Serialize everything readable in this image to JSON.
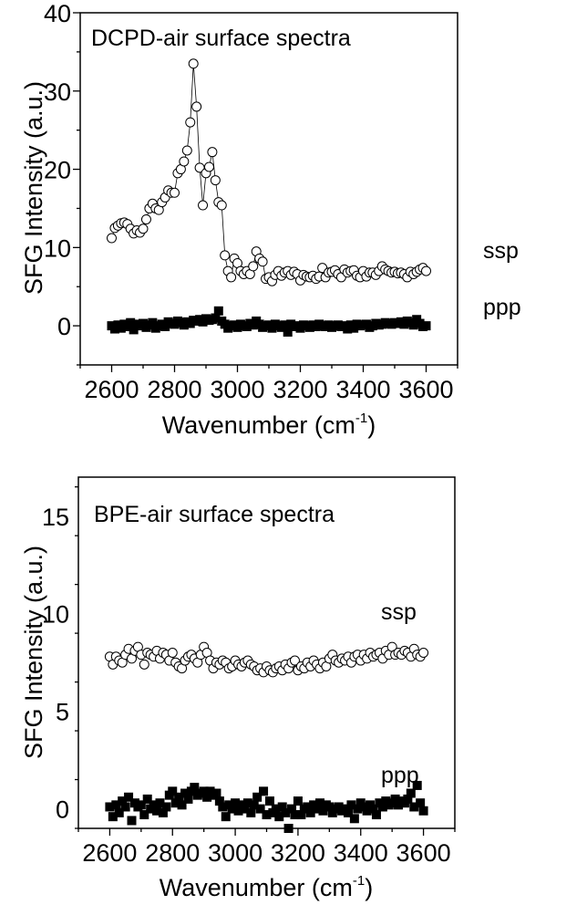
{
  "chart_data": [
    {
      "type": "scatter",
      "title": "DCPD-air surface spectra",
      "xlabel": "Wavenumber (cm",
      "xlabel_sup": "-1",
      "xlabel_end": ")",
      "ylabel": "SFG Intensity (a.u.)",
      "xlim": [
        2500,
        3700
      ],
      "ylim": [
        -5,
        40
      ],
      "xticks": [
        2600,
        2800,
        3000,
        3200,
        3400,
        3600
      ],
      "yticks": [
        0,
        10,
        20,
        30,
        40
      ],
      "grid": false,
      "x_start": 2600,
      "x_step": 10,
      "series": [
        {
          "name": "ssp",
          "marker": "open-circle",
          "line": true,
          "values": [
            11.2,
            12.5,
            12.8,
            13.1,
            13.2,
            13.0,
            12.4,
            11.8,
            12.2,
            11.9,
            12.4,
            13.6,
            15.0,
            15.6,
            15.0,
            14.8,
            15.8,
            16.4,
            17.3,
            17.0,
            17.0,
            19.5,
            20.0,
            21.0,
            22.4,
            26.0,
            33.5,
            28.0,
            20.2,
            15.4,
            19.5,
            20.3,
            22.2,
            18.6,
            15.8,
            15.4,
            9.0,
            7.0,
            6.2,
            8.6,
            8.0,
            7.0,
            6.6,
            7.0,
            6.6,
            7.6,
            9.5,
            8.6,
            8.2,
            6.0,
            6.2,
            5.7,
            6.5,
            7.0,
            6.4,
            6.8,
            7.0,
            6.5,
            6.9,
            6.6,
            5.8,
            6.5,
            6.3,
            6.2,
            6.4,
            6.0,
            6.3,
            7.4,
            6.2,
            6.8,
            6.9,
            7.1,
            6.6,
            6.2,
            7.2,
            6.8,
            7.0,
            7.1,
            6.4,
            6.2,
            7.0,
            6.3,
            6.8,
            6.8,
            6.5,
            7.0,
            7.6,
            7.2,
            7.0,
            6.8,
            6.9,
            6.7,
            6.8,
            6.6,
            6.2,
            6.9,
            6.6,
            6.9,
            7.2,
            7.4,
            7.0
          ]
        },
        {
          "name": "ppp",
          "marker": "filled-square",
          "line": false,
          "values": [
            0.0,
            -0.4,
            0.1,
            -0.3,
            0.2,
            -0.1,
            0.4,
            -0.5,
            0.2,
            0.0,
            0.3,
            -0.2,
            0.1,
            0.4,
            -0.3,
            0.0,
            0.2,
            -0.1,
            0.5,
            0.3,
            0.2,
            0.6,
            0.4,
            0.1,
            0.5,
            0.3,
            0.7,
            0.6,
            0.8,
            0.5,
            0.9,
            0.7,
            0.8,
            1.0,
            1.9,
            0.6,
            0.2,
            -0.3,
            0.0,
            0.1,
            -0.2,
            0.2,
            0.0,
            -0.1,
            0.3,
            0.1,
            0.6,
            0.2,
            -0.2,
            0.0,
            0.1,
            -0.3,
            0.2,
            0.0,
            -0.2,
            0.1,
            -0.8,
            0.2,
            -0.1,
            0.0,
            -0.3,
            0.1,
            0.0,
            -0.2,
            0.1,
            -0.1,
            0.2,
            0.0,
            -0.1,
            0.1,
            -0.2,
            0.0,
            0.1,
            -0.1,
            0.0,
            -0.4,
            0.1,
            -0.3,
            0.2,
            0.0,
            0.1,
            0.2,
            -0.2,
            0.0,
            0.3,
            0.1,
            0.2,
            0.4,
            0.3,
            0.2,
            0.4,
            0.3,
            0.5,
            0.2,
            0.6,
            0.4,
            0.1,
            0.8,
            0.3,
            -0.1,
            0.0
          ]
        }
      ],
      "annotations": [
        "ssp",
        "ppp"
      ]
    },
    {
      "type": "scatter",
      "title": "BPE-air surface spectra",
      "xlabel": "Wavenumber (cm",
      "xlabel_sup": "-1",
      "xlabel_end": ")",
      "ylabel": "SFG Intensity (a.u.)",
      "xlim": [
        2500,
        3700
      ],
      "ylim": [
        -1,
        17
      ],
      "xticks": [
        2600,
        2800,
        3000,
        3200,
        3400,
        3600
      ],
      "yticks": [
        0,
        5,
        10,
        15
      ],
      "grid": false,
      "x_start": 2600,
      "x_step": 10,
      "series": [
        {
          "name": "ssp",
          "marker": "open-circle",
          "line": false,
          "values": [
            7.8,
            7.4,
            7.8,
            7.6,
            7.5,
            7.9,
            8.2,
            7.7,
            8.1,
            8.3,
            7.9,
            7.4,
            8.0,
            7.9,
            7.8,
            8.1,
            7.7,
            8.0,
            7.9,
            7.6,
            8.0,
            7.5,
            7.3,
            7.2,
            7.6,
            7.8,
            7.9,
            7.7,
            7.5,
            7.9,
            8.3,
            8.0,
            7.6,
            7.2,
            7.5,
            7.4,
            7.6,
            7.5,
            7.2,
            7.3,
            7.6,
            7.4,
            7.3,
            7.5,
            7.6,
            7.4,
            7.3,
            7.1,
            7.2,
            7.0,
            7.3,
            7.1,
            7.0,
            7.2,
            7.3,
            7.1,
            7.4,
            7.2,
            7.5,
            7.6,
            7.1,
            7.3,
            7.2,
            7.5,
            7.3,
            7.6,
            7.4,
            7.2,
            7.5,
            7.3,
            7.7,
            7.9,
            7.6,
            7.5,
            7.7,
            7.6,
            7.8,
            7.5,
            7.8,
            7.9,
            7.6,
            7.9,
            7.7,
            8.0,
            7.8,
            7.9,
            8.0,
            7.7,
            8.1,
            7.9,
            8.3,
            7.9,
            8.0,
            7.9,
            8.1,
            8.0,
            7.8,
            8.2,
            7.9,
            7.8,
            8.0
          ]
        },
        {
          "name": "ppp",
          "marker": "filled-square",
          "line": false,
          "values": [
            0.1,
            -0.4,
            0.2,
            -0.2,
            0.4,
            0.1,
            0.6,
            -0.6,
            0.3,
            0.1,
            0.2,
            -0.3,
            0.5,
            0.0,
            0.2,
            -0.1,
            0.3,
            -0.2,
            0.1,
            0.7,
            0.9,
            0.3,
            0.6,
            0.2,
            0.8,
            0.5,
            0.9,
            1.1,
            0.7,
            0.8,
            0.9,
            0.6,
            0.9,
            0.7,
            0.8,
            0.4,
            0.1,
            -0.4,
            0.2,
            0.0,
            0.3,
            -0.1,
            0.2,
            0.0,
            0.3,
            -0.2,
            0.2,
            0.6,
            0.0,
            0.9,
            -0.3,
            0.4,
            -0.2,
            0.0,
            -0.4,
            0.1,
            -0.2,
            -1.0,
            0.0,
            -0.3,
            0.4,
            -0.3,
            0.0,
            0.1,
            -0.2,
            0.2,
            0.0,
            0.3,
            -0.1,
            0.2,
            0.1,
            -0.2,
            0.0,
            0.1,
            -0.1,
            0.0,
            -0.2,
            0.2,
            -0.5,
            0.0,
            0.3,
            0.1,
            -0.1,
            0.2,
            0.0,
            -0.3,
            0.3,
            0.1,
            0.4,
            0.2,
            0.3,
            0.5,
            0.2,
            0.4,
            0.3,
            0.5,
            0.8,
            0.1,
            1.2,
            0.3,
            -0.1
          ]
        }
      ],
      "annotations": [
        "ssp",
        "ppp"
      ]
    }
  ]
}
